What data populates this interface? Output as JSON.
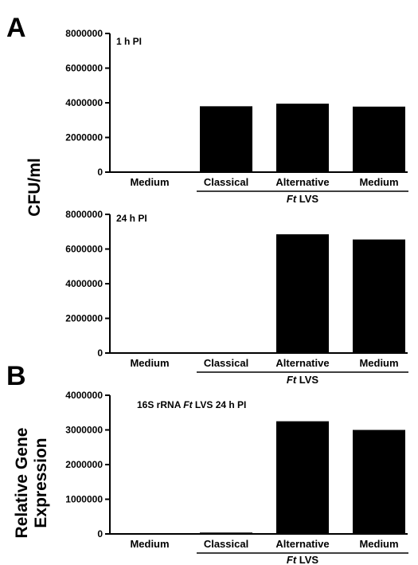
{
  "panel_letters": {
    "a": "A",
    "b": "B"
  },
  "shared_ylabel": "CFU/ml",
  "panel_b_ylabel": [
    "Relative Gene",
    "Expression"
  ],
  "chart_data": [
    {
      "type": "bar",
      "panel": "A",
      "annotation": "1 h PI",
      "categories": [
        "Medium",
        "Classical",
        "Alternative",
        "Medium"
      ],
      "values": [
        0,
        3800000,
        3950000,
        3780000
      ],
      "group_label": {
        "prefix": "Ft",
        "suffix": " LVS",
        "covers": [
          1,
          2,
          3
        ]
      },
      "ylim": [
        0,
        8000000
      ],
      "yticks": [
        0,
        2000000,
        4000000,
        6000000,
        8000000
      ],
      "ytick_labels": [
        "0",
        "2000000",
        "4000000",
        "6000000",
        "8000000"
      ],
      "ylabel": "CFU/ml"
    },
    {
      "type": "bar",
      "panel": "A",
      "annotation": "24 h PI",
      "categories": [
        "Medium",
        "Classical",
        "Alternative",
        "Medium"
      ],
      "values": [
        0,
        40000,
        6850000,
        6550000
      ],
      "group_label": {
        "prefix": "Ft",
        "suffix": " LVS",
        "covers": [
          1,
          2,
          3
        ]
      },
      "ylim": [
        0,
        8000000
      ],
      "yticks": [
        0,
        2000000,
        4000000,
        6000000,
        8000000
      ],
      "ytick_labels": [
        "0",
        "2000000",
        "4000000",
        "6000000",
        "8000000"
      ],
      "ylabel": "CFU/ml"
    },
    {
      "type": "bar",
      "panel": "B",
      "annotation": {
        "pre": "16S rRNA ",
        "italic": "Ft",
        "post": " LVS 24 h PI"
      },
      "categories": [
        "Medium",
        "Classical",
        "Alternative",
        "Medium"
      ],
      "values": [
        0,
        40000,
        3250000,
        3000000
      ],
      "group_label": {
        "prefix": "Ft",
        "suffix": " LVS",
        "covers": [
          1,
          2,
          3
        ]
      },
      "ylim": [
        0,
        4000000
      ],
      "yticks": [
        0,
        1000000,
        2000000,
        3000000,
        4000000
      ],
      "ytick_labels": [
        "0",
        "1000000",
        "2000000",
        "3000000",
        "4000000"
      ],
      "ylabel": "Relative Gene Expression"
    }
  ]
}
